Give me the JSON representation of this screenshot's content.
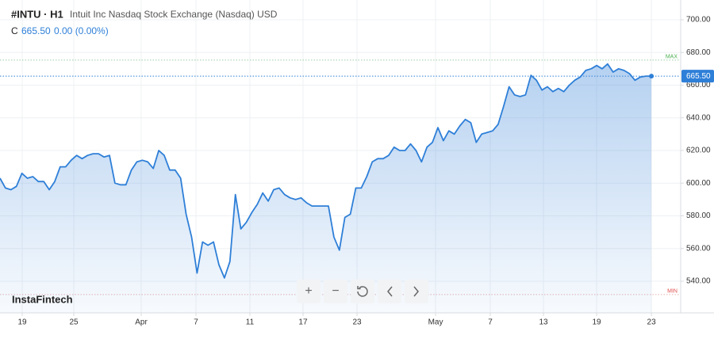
{
  "chart_data": {
    "type": "line",
    "symbol": "#INTU · H1",
    "title": "Intuit Inc Nasdaq Stock Exchange (Nasdaq) USD",
    "close_label": "C",
    "price_text": "665.50",
    "change_text": "0.00 (0.00%)",
    "watermark": "InstaFintech",
    "color": "#2e7fd8",
    "values": [
      603,
      597,
      596,
      598,
      606,
      603,
      604,
      601,
      601,
      596,
      601,
      610,
      610,
      614,
      617,
      615,
      617,
      618,
      618,
      616,
      617,
      600,
      599,
      599,
      608,
      613,
      614,
      613,
      609,
      620,
      617,
      608,
      608,
      603,
      581,
      567,
      545,
      564,
      562,
      564,
      550,
      542,
      552,
      593,
      572,
      576,
      582,
      587,
      594,
      589,
      596,
      597,
      593,
      591,
      590,
      591,
      588,
      586,
      586,
      586,
      586,
      567,
      559,
      579,
      581,
      597,
      597,
      604,
      613,
      615,
      615,
      617,
      622,
      620,
      620,
      624,
      620,
      613,
      622,
      625,
      634,
      626,
      632,
      630,
      635,
      639,
      637,
      625,
      630,
      631,
      632,
      636,
      647,
      659,
      654,
      653,
      654,
      666,
      663,
      657,
      659,
      656,
      658,
      656,
      660,
      663,
      665,
      669,
      670,
      672,
      670,
      673,
      668,
      670,
      669,
      667,
      663,
      665,
      665.5,
      665.5
    ],
    "xlim": [
      0,
      124.35
    ],
    "xticks": [
      {
        "value": 4.06,
        "label": "19"
      },
      {
        "value": 13.48,
        "label": "25"
      },
      {
        "value": 25.8,
        "label": "Apr"
      },
      {
        "value": 35.8,
        "label": "7"
      },
      {
        "value": 45.65,
        "label": "11"
      },
      {
        "value": 55.36,
        "label": "17"
      },
      {
        "value": 65.22,
        "label": "23"
      },
      {
        "value": 79.57,
        "label": "May"
      },
      {
        "value": 89.57,
        "label": "7"
      },
      {
        "value": 99.28,
        "label": "13"
      },
      {
        "value": 108.99,
        "label": "19"
      },
      {
        "value": 119,
        "label": "23"
      }
    ],
    "ylim": [
      520.6,
      712.1
    ],
    "yticks": [
      {
        "value": 540,
        "label": "540.00"
      },
      {
        "value": 560,
        "label": "560.00"
      },
      {
        "value": 580,
        "label": "580.00"
      },
      {
        "value": 600,
        "label": "600.00"
      },
      {
        "value": 620,
        "label": "620.00"
      },
      {
        "value": 640,
        "label": "640.00"
      },
      {
        "value": 660,
        "label": "660.00"
      },
      {
        "value": 680,
        "label": "680.00"
      },
      {
        "value": 700,
        "label": "700.00"
      }
    ],
    "grid": true,
    "price_line": {
      "value": 665.5,
      "label": "665.50"
    },
    "max_line": {
      "value": 675.3,
      "label": "MAX"
    },
    "min_line": {
      "value": 531.8,
      "label": "MIN"
    }
  }
}
